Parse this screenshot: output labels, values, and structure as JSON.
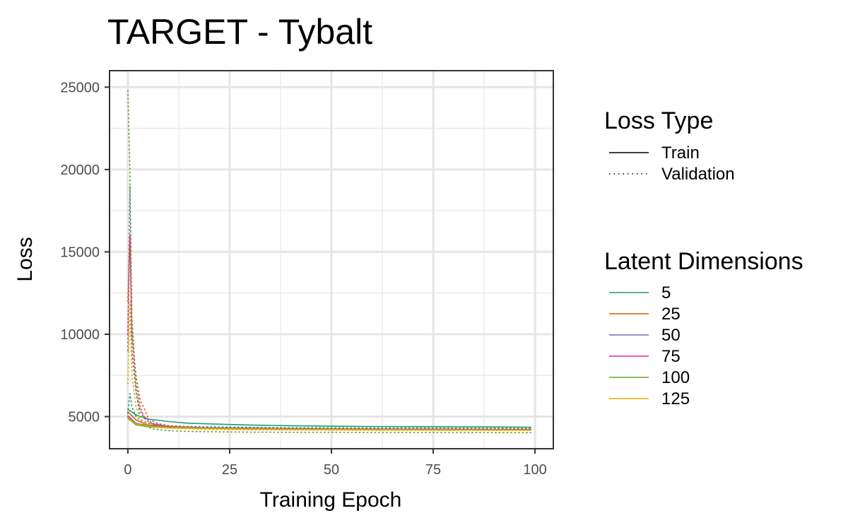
{
  "chart_data": {
    "type": "line",
    "title": "TARGET - Tybalt",
    "xlabel": "Training Epoch",
    "ylabel": "Loss",
    "xlim": [
      -4.5,
      104.5
    ],
    "ylim": [
      3050,
      26000
    ],
    "x_ticks": [
      0,
      25,
      50,
      75,
      100
    ],
    "y_ticks": [
      5000,
      10000,
      15000,
      20000,
      25000
    ],
    "x_tick_labels": [
      "0",
      "25",
      "50",
      "75",
      "100"
    ],
    "y_tick_labels": [
      "5000",
      "10000",
      "15000",
      "20000",
      "25000"
    ],
    "grid": true,
    "legend_placement": "right",
    "loss_type_legend": {
      "title": "Loss Type",
      "items": [
        {
          "label": "Train",
          "style": "solid"
        },
        {
          "label": "Validation",
          "style": "dotted"
        }
      ]
    },
    "latent_legend": {
      "title": "Latent Dimensions",
      "items": [
        {
          "label": "5",
          "color": "#1b9e77"
        },
        {
          "label": "25",
          "color": "#d95f02"
        },
        {
          "label": "50",
          "color": "#7570b3"
        },
        {
          "label": "75",
          "color": "#e7298a"
        },
        {
          "label": "100",
          "color": "#66a61e"
        },
        {
          "label": "125",
          "color": "#e6ab02"
        }
      ]
    },
    "series": [
      {
        "name": "5",
        "loss_type": "Train",
        "color": "#1b9e77",
        "style": "solid",
        "x": [
          0,
          2,
          5,
          10,
          15,
          20,
          25,
          30,
          40,
          50,
          60,
          70,
          80,
          90,
          99
        ],
        "y": [
          5450,
          5100,
          4850,
          4700,
          4600,
          4560,
          4520,
          4490,
          4450,
          4420,
          4400,
          4390,
          4380,
          4370,
          4360
        ]
      },
      {
        "name": "5",
        "loss_type": "Validation",
        "color": "#1b9e77",
        "style": "dotted",
        "x": [
          0,
          0.5,
          1,
          2,
          3,
          5,
          10,
          15,
          20,
          30,
          40,
          50,
          60,
          70,
          80,
          90,
          99
        ],
        "y": [
          5200,
          6400,
          5600,
          5000,
          4800,
          4600,
          4450,
          4400,
          4380,
          4350,
          4330,
          4320,
          4310,
          4300,
          4300,
          4290,
          4290
        ]
      },
      {
        "name": "25",
        "loss_type": "Train",
        "color": "#d95f02",
        "style": "solid",
        "x": [
          0,
          2,
          5,
          10,
          15,
          20,
          30,
          40,
          50,
          60,
          70,
          80,
          90,
          99
        ],
        "y": [
          5300,
          4800,
          4500,
          4400,
          4350,
          4310,
          4280,
          4260,
          4250,
          4240,
          4230,
          4225,
          4220,
          4215
        ]
      },
      {
        "name": "25",
        "loss_type": "Validation",
        "color": "#d95f02",
        "style": "dotted",
        "x": [
          0,
          0.5,
          1,
          2,
          3,
          4,
          5,
          7,
          10,
          20,
          30,
          40,
          50,
          60,
          70,
          80,
          90,
          99
        ],
        "y": [
          12000,
          16000,
          10000,
          7500,
          6000,
          5500,
          4900,
          4600,
          4450,
          4300,
          4280,
          4270,
          4260,
          4250,
          4250,
          4240,
          4240,
          4240
        ]
      },
      {
        "name": "50",
        "loss_type": "Train",
        "color": "#7570b3",
        "style": "solid",
        "x": [
          0,
          2,
          5,
          10,
          20,
          30,
          40,
          50,
          60,
          70,
          80,
          90,
          99
        ],
        "y": [
          5050,
          4600,
          4450,
          4380,
          4320,
          4290,
          4270,
          4250,
          4240,
          4230,
          4220,
          4215,
          4210
        ]
      },
      {
        "name": "50",
        "loss_type": "Validation",
        "color": "#7570b3",
        "style": "dotted",
        "x": [
          0,
          0.5,
          1,
          2,
          3,
          4,
          6,
          10,
          20,
          30,
          40,
          50,
          60,
          70,
          80,
          90,
          99
        ],
        "y": [
          9000,
          19000,
          11000,
          7000,
          5600,
          5000,
          4600,
          4400,
          4290,
          4260,
          4250,
          4240,
          4230,
          4230,
          4220,
          4220,
          4220
        ]
      },
      {
        "name": "75",
        "loss_type": "Train",
        "color": "#e7298a",
        "style": "solid",
        "x": [
          0,
          2,
          5,
          10,
          20,
          30,
          40,
          50,
          60,
          70,
          80,
          90,
          99
        ],
        "y": [
          5000,
          4550,
          4420,
          4350,
          4300,
          4270,
          4250,
          4240,
          4230,
          4220,
          4215,
          4210,
          4205
        ]
      },
      {
        "name": "75",
        "loss_type": "Validation",
        "color": "#e7298a",
        "style": "dotted",
        "x": [
          0,
          0.5,
          1,
          2,
          3,
          4,
          6,
          10,
          20,
          30,
          40,
          50,
          60,
          70,
          80,
          90,
          99
        ],
        "y": [
          10000,
          16000,
          9000,
          6500,
          5400,
          4900,
          4550,
          4380,
          4280,
          4250,
          4240,
          4230,
          4220,
          4220,
          4210,
          4210,
          4210
        ]
      },
      {
        "name": "100",
        "loss_type": "Train",
        "color": "#66a61e",
        "style": "solid",
        "x": [
          0,
          2,
          5,
          10,
          20,
          30,
          40,
          50,
          60,
          70,
          80,
          90,
          99
        ],
        "y": [
          4900,
          4500,
          4380,
          4320,
          4270,
          4240,
          4220,
          4210,
          4200,
          4195,
          4190,
          4185,
          4180
        ]
      },
      {
        "name": "100",
        "loss_type": "Validation",
        "color": "#66a61e",
        "style": "dotted",
        "x": [
          0,
          0.5,
          1,
          2,
          3,
          4,
          6,
          10,
          15,
          20,
          30,
          40,
          50,
          60,
          70,
          80,
          90,
          99
        ],
        "y": [
          24800,
          20000,
          10500,
          6500,
          5000,
          4500,
          4250,
          4150,
          4100,
          4080,
          4060,
          4050,
          4050,
          4040,
          4040,
          4040,
          4030,
          4030
        ]
      },
      {
        "name": "125",
        "loss_type": "Train",
        "color": "#e6ab02",
        "style": "solid",
        "x": [
          0,
          2,
          5,
          10,
          20,
          30,
          40,
          50,
          60,
          70,
          80,
          90,
          99
        ],
        "y": [
          4950,
          4550,
          4420,
          4340,
          4280,
          4250,
          4230,
          4220,
          4210,
          4200,
          4195,
          4190,
          4185
        ]
      },
      {
        "name": "125",
        "loss_type": "Validation",
        "color": "#e6ab02",
        "style": "dotted",
        "x": [
          0,
          0.5,
          1,
          2,
          3,
          4,
          6,
          10,
          20,
          30,
          40,
          50,
          60,
          70,
          80,
          90,
          99
        ],
        "y": [
          7000,
          12000,
          7500,
          5600,
          4900,
          4600,
          4400,
          4300,
          4230,
          4200,
          4190,
          4180,
          4170,
          4170,
          4160,
          4160,
          4160
        ]
      }
    ]
  }
}
